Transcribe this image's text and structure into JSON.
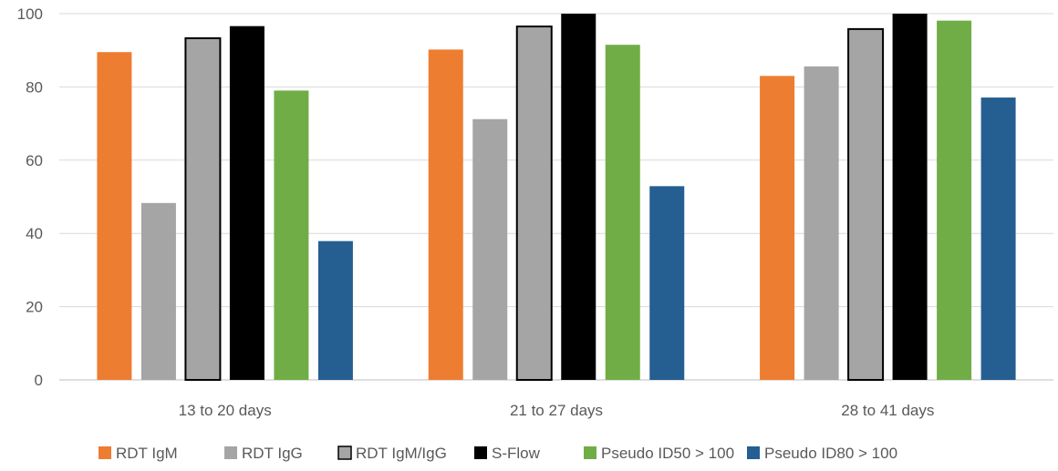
{
  "chart_data": {
    "type": "bar",
    "title": "",
    "xlabel": "",
    "ylabel": "",
    "ylim": [
      0,
      100
    ],
    "yticks": [
      0,
      20,
      40,
      60,
      80,
      100
    ],
    "grid": "horizontal",
    "legend_position": "bottom",
    "categories": [
      "13 to 20 days",
      "21 to 27 days",
      "28 to 41 days"
    ],
    "series": [
      {
        "name": "RDT IgM",
        "color": "#ED7D31",
        "outline": "none",
        "values": [
          89.5,
          90.2,
          83.0
        ]
      },
      {
        "name": "RDT IgG",
        "color": "#A5A5A5",
        "outline": "none",
        "values": [
          48.3,
          71.2,
          85.6
        ]
      },
      {
        "name": "RDT IgM/IgG",
        "color": "#A5A5A5",
        "outline": "#000000",
        "values": [
          93.3,
          96.5,
          95.8
        ]
      },
      {
        "name": "S-Flow",
        "color": "#000000",
        "outline": "none",
        "values": [
          96.6,
          100,
          100
        ]
      },
      {
        "name": "Pseudo ID50 > 100",
        "color": "#70AD47",
        "outline": "none",
        "values": [
          79.0,
          91.5,
          98.1
        ]
      },
      {
        "name": "Pseudo ID80 > 100",
        "color": "#255E91",
        "outline": "none",
        "values": [
          37.9,
          52.9,
          77.1
        ]
      }
    ]
  }
}
